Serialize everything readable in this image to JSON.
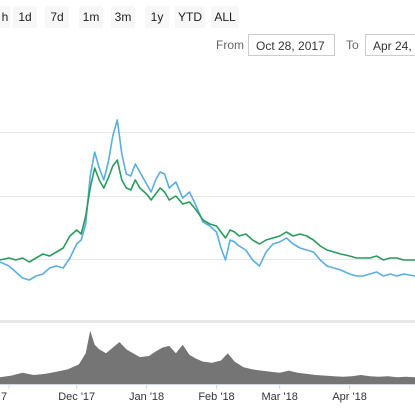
{
  "range_selector": {
    "buttons": [
      {
        "label": "h"
      },
      {
        "label": "1d"
      },
      {
        "label": "7d"
      },
      {
        "label": "1m"
      },
      {
        "label": "3m"
      },
      {
        "label": "1y"
      },
      {
        "label": "YTD"
      },
      {
        "label": "ALL"
      }
    ]
  },
  "date_range": {
    "from_label": "From",
    "from_value": "Oct 28, 2017",
    "to_label": "To",
    "to_value": "Apr 24,"
  },
  "colors": {
    "line_blue": "#5aaee0",
    "line_green": "#2c9a5e",
    "volume": "#757575",
    "grid": "#e6e6e6"
  },
  "chart_data": {
    "type": "line",
    "x_tick_labels": [
      "7",
      "Dec '17",
      "Jan '18",
      "Feb '18",
      "Mar '18",
      "Apr '18"
    ],
    "x_ticks": [
      "2017-11-01",
      "2017-12-01",
      "2018-01-01",
      "2018-02-01",
      "2018-03-01",
      "2018-04-01"
    ],
    "xlim": [
      "2017-10-28",
      "2018-04-30"
    ],
    "ylim": [
      0,
      1
    ],
    "grid": true,
    "series": [
      {
        "color": "#5aaee0",
        "points": [
          [
            "2017-10-28",
            0.29
          ],
          [
            "2017-11-01",
            0.27
          ],
          [
            "2017-11-04",
            0.24
          ],
          [
            "2017-11-07",
            0.21
          ],
          [
            "2017-11-10",
            0.2
          ],
          [
            "2017-11-13",
            0.22
          ],
          [
            "2017-11-16",
            0.23
          ],
          [
            "2017-11-19",
            0.26
          ],
          [
            "2017-11-22",
            0.27
          ],
          [
            "2017-11-25",
            0.26
          ],
          [
            "2017-11-28",
            0.31
          ],
          [
            "2017-12-01",
            0.38
          ],
          [
            "2017-12-03",
            0.4
          ],
          [
            "2017-12-05",
            0.48
          ],
          [
            "2017-12-07",
            0.72
          ],
          [
            "2017-12-09",
            0.84
          ],
          [
            "2017-12-11",
            0.76
          ],
          [
            "2017-12-13",
            0.7
          ],
          [
            "2017-12-15",
            0.79
          ],
          [
            "2017-12-17",
            0.92
          ],
          [
            "2017-12-19",
            1.0
          ],
          [
            "2017-12-21",
            0.83
          ],
          [
            "2017-12-23",
            0.73
          ],
          [
            "2017-12-25",
            0.72
          ],
          [
            "2017-12-27",
            0.78
          ],
          [
            "2017-12-29",
            0.74
          ],
          [
            "2018-01-01",
            0.68
          ],
          [
            "2018-01-03",
            0.64
          ],
          [
            "2018-01-05",
            0.7
          ],
          [
            "2018-01-07",
            0.74
          ],
          [
            "2018-01-09",
            0.73
          ],
          [
            "2018-01-11",
            0.66
          ],
          [
            "2018-01-14",
            0.69
          ],
          [
            "2018-01-17",
            0.61
          ],
          [
            "2018-01-20",
            0.64
          ],
          [
            "2018-01-23",
            0.57
          ],
          [
            "2018-01-26",
            0.49
          ],
          [
            "2018-01-29",
            0.47
          ],
          [
            "2018-02-01",
            0.44
          ],
          [
            "2018-02-03",
            0.36
          ],
          [
            "2018-02-05",
            0.3
          ],
          [
            "2018-02-07",
            0.4
          ],
          [
            "2018-02-09",
            0.39
          ],
          [
            "2018-02-11",
            0.37
          ],
          [
            "2018-02-14",
            0.35
          ],
          [
            "2018-02-17",
            0.3
          ],
          [
            "2018-02-20",
            0.27
          ],
          [
            "2018-02-23",
            0.34
          ],
          [
            "2018-02-26",
            0.38
          ],
          [
            "2018-03-01",
            0.39
          ],
          [
            "2018-03-04",
            0.41
          ],
          [
            "2018-03-07",
            0.38
          ],
          [
            "2018-03-10",
            0.36
          ],
          [
            "2018-03-13",
            0.35
          ],
          [
            "2018-03-16",
            0.34
          ],
          [
            "2018-03-19",
            0.3
          ],
          [
            "2018-03-22",
            0.27
          ],
          [
            "2018-03-25",
            0.26
          ],
          [
            "2018-03-28",
            0.25
          ],
          [
            "2018-04-01",
            0.23
          ],
          [
            "2018-04-04",
            0.22
          ],
          [
            "2018-04-07",
            0.22
          ],
          [
            "2018-04-10",
            0.23
          ],
          [
            "2018-04-13",
            0.24
          ],
          [
            "2018-04-16",
            0.22
          ],
          [
            "2018-04-19",
            0.23
          ],
          [
            "2018-04-22",
            0.22
          ],
          [
            "2018-04-25",
            0.23
          ],
          [
            "2018-04-30",
            0.22
          ]
        ]
      },
      {
        "color": "#2c9a5e",
        "points": [
          [
            "2017-10-28",
            0.3
          ],
          [
            "2017-11-01",
            0.31
          ],
          [
            "2017-11-04",
            0.3
          ],
          [
            "2017-11-07",
            0.31
          ],
          [
            "2017-11-10",
            0.29
          ],
          [
            "2017-11-13",
            0.31
          ],
          [
            "2017-11-16",
            0.33
          ],
          [
            "2017-11-19",
            0.32
          ],
          [
            "2017-11-22",
            0.34
          ],
          [
            "2017-11-25",
            0.36
          ],
          [
            "2017-11-28",
            0.42
          ],
          [
            "2017-12-01",
            0.45
          ],
          [
            "2017-12-03",
            0.43
          ],
          [
            "2017-12-05",
            0.52
          ],
          [
            "2017-12-07",
            0.66
          ],
          [
            "2017-12-09",
            0.76
          ],
          [
            "2017-12-11",
            0.7
          ],
          [
            "2017-12-13",
            0.66
          ],
          [
            "2017-12-15",
            0.71
          ],
          [
            "2017-12-17",
            0.77
          ],
          [
            "2017-12-19",
            0.8
          ],
          [
            "2017-12-21",
            0.7
          ],
          [
            "2017-12-23",
            0.66
          ],
          [
            "2017-12-25",
            0.65
          ],
          [
            "2017-12-27",
            0.7
          ],
          [
            "2017-12-29",
            0.66
          ],
          [
            "2018-01-01",
            0.63
          ],
          [
            "2018-01-03",
            0.6
          ],
          [
            "2018-01-05",
            0.63
          ],
          [
            "2018-01-07",
            0.66
          ],
          [
            "2018-01-09",
            0.64
          ],
          [
            "2018-01-11",
            0.6
          ],
          [
            "2018-01-14",
            0.62
          ],
          [
            "2018-01-17",
            0.58
          ],
          [
            "2018-01-20",
            0.59
          ],
          [
            "2018-01-23",
            0.55
          ],
          [
            "2018-01-26",
            0.5
          ],
          [
            "2018-01-29",
            0.48
          ],
          [
            "2018-02-01",
            0.47
          ],
          [
            "2018-02-03",
            0.44
          ],
          [
            "2018-02-05",
            0.41
          ],
          [
            "2018-02-07",
            0.45
          ],
          [
            "2018-02-09",
            0.44
          ],
          [
            "2018-02-11",
            0.42
          ],
          [
            "2018-02-14",
            0.43
          ],
          [
            "2018-02-17",
            0.4
          ],
          [
            "2018-02-20",
            0.38
          ],
          [
            "2018-02-23",
            0.4
          ],
          [
            "2018-02-26",
            0.41
          ],
          [
            "2018-03-01",
            0.42
          ],
          [
            "2018-03-04",
            0.44
          ],
          [
            "2018-03-07",
            0.42
          ],
          [
            "2018-03-10",
            0.43
          ],
          [
            "2018-03-13",
            0.42
          ],
          [
            "2018-03-16",
            0.4
          ],
          [
            "2018-03-19",
            0.37
          ],
          [
            "2018-03-22",
            0.35
          ],
          [
            "2018-03-25",
            0.34
          ],
          [
            "2018-03-28",
            0.33
          ],
          [
            "2018-04-01",
            0.32
          ],
          [
            "2018-04-04",
            0.31
          ],
          [
            "2018-04-07",
            0.31
          ],
          [
            "2018-04-10",
            0.31
          ],
          [
            "2018-04-13",
            0.32
          ],
          [
            "2018-04-16",
            0.3
          ],
          [
            "2018-04-19",
            0.31
          ],
          [
            "2018-04-22",
            0.31
          ],
          [
            "2018-04-25",
            0.3
          ],
          [
            "2018-04-30",
            0.3
          ]
        ]
      }
    ],
    "volume": {
      "color": "#757575",
      "ylim": [
        0,
        1
      ],
      "points": [
        [
          "2017-10-28",
          0.12
        ],
        [
          "2017-11-02",
          0.15
        ],
        [
          "2017-11-07",
          0.2
        ],
        [
          "2017-11-12",
          0.16
        ],
        [
          "2017-11-17",
          0.18
        ],
        [
          "2017-11-22",
          0.22
        ],
        [
          "2017-11-27",
          0.26
        ],
        [
          "2017-12-02",
          0.35
        ],
        [
          "2017-12-05",
          0.55
        ],
        [
          "2017-12-07",
          0.95
        ],
        [
          "2017-12-09",
          0.7
        ],
        [
          "2017-12-11",
          0.62
        ],
        [
          "2017-12-14",
          0.55
        ],
        [
          "2017-12-17",
          0.65
        ],
        [
          "2017-12-20",
          0.75
        ],
        [
          "2017-12-23",
          0.62
        ],
        [
          "2017-12-26",
          0.55
        ],
        [
          "2017-12-29",
          0.48
        ],
        [
          "2018-01-02",
          0.5
        ],
        [
          "2018-01-05",
          0.58
        ],
        [
          "2018-01-08",
          0.65
        ],
        [
          "2018-01-11",
          0.68
        ],
        [
          "2018-01-14",
          0.55
        ],
        [
          "2018-01-17",
          0.7
        ],
        [
          "2018-01-20",
          0.52
        ],
        [
          "2018-01-23",
          0.45
        ],
        [
          "2018-01-26",
          0.4
        ],
        [
          "2018-01-30",
          0.38
        ],
        [
          "2018-02-03",
          0.42
        ],
        [
          "2018-02-06",
          0.55
        ],
        [
          "2018-02-09",
          0.4
        ],
        [
          "2018-02-13",
          0.3
        ],
        [
          "2018-02-17",
          0.26
        ],
        [
          "2018-02-21",
          0.24
        ],
        [
          "2018-02-25",
          0.22
        ],
        [
          "2018-03-01",
          0.2
        ],
        [
          "2018-03-05",
          0.24
        ],
        [
          "2018-03-09",
          0.2
        ],
        [
          "2018-03-13",
          0.18
        ],
        [
          "2018-03-17",
          0.16
        ],
        [
          "2018-03-21",
          0.15
        ],
        [
          "2018-03-25",
          0.14
        ],
        [
          "2018-03-29",
          0.13
        ],
        [
          "2018-04-02",
          0.14
        ],
        [
          "2018-04-06",
          0.16
        ],
        [
          "2018-04-10",
          0.14
        ],
        [
          "2018-04-14",
          0.13
        ],
        [
          "2018-04-18",
          0.14
        ],
        [
          "2018-04-22",
          0.12
        ],
        [
          "2018-04-26",
          0.13
        ],
        [
          "2018-04-30",
          0.12
        ]
      ]
    }
  }
}
